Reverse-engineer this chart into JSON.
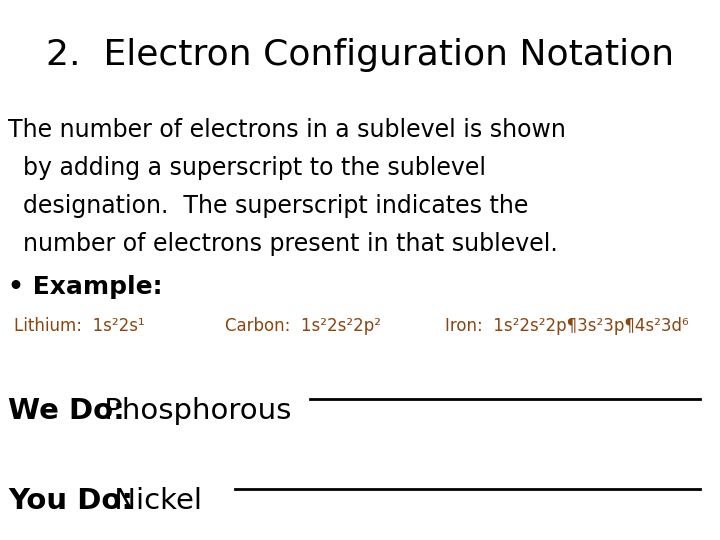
{
  "title": "2.  Electron Configuration Notation",
  "body_lines": [
    "The number of electrons in a sublevel is shown",
    "  by adding a superscript to the sublevel",
    "  designation.  The superscript indicates the",
    "  number of electrons present in that sublevel."
  ],
  "bullet_label": "• Example:",
  "lithium_text": "Lithium:  1s²2s¹",
  "carbon_text": "Carbon:  1s²2s²2p²",
  "iron_text": "Iron:  1s²2s²2p¶3s²3p¶4s²3d⁶",
  "we_do_bold": "We Do:",
  "we_do_normal": " Phosphorous",
  "you_do_bold": "You Do:",
  "you_do_normal": " Nickel",
  "background_color": "#ffffff",
  "title_color": "#000000",
  "body_color": "#000000",
  "example_color": "#8B4513",
  "line_color": "#000000",
  "title_fontsize": 26,
  "body_fontsize": 17,
  "bullet_fontsize": 18,
  "example_fontsize": 12,
  "we_do_fontsize": 21
}
